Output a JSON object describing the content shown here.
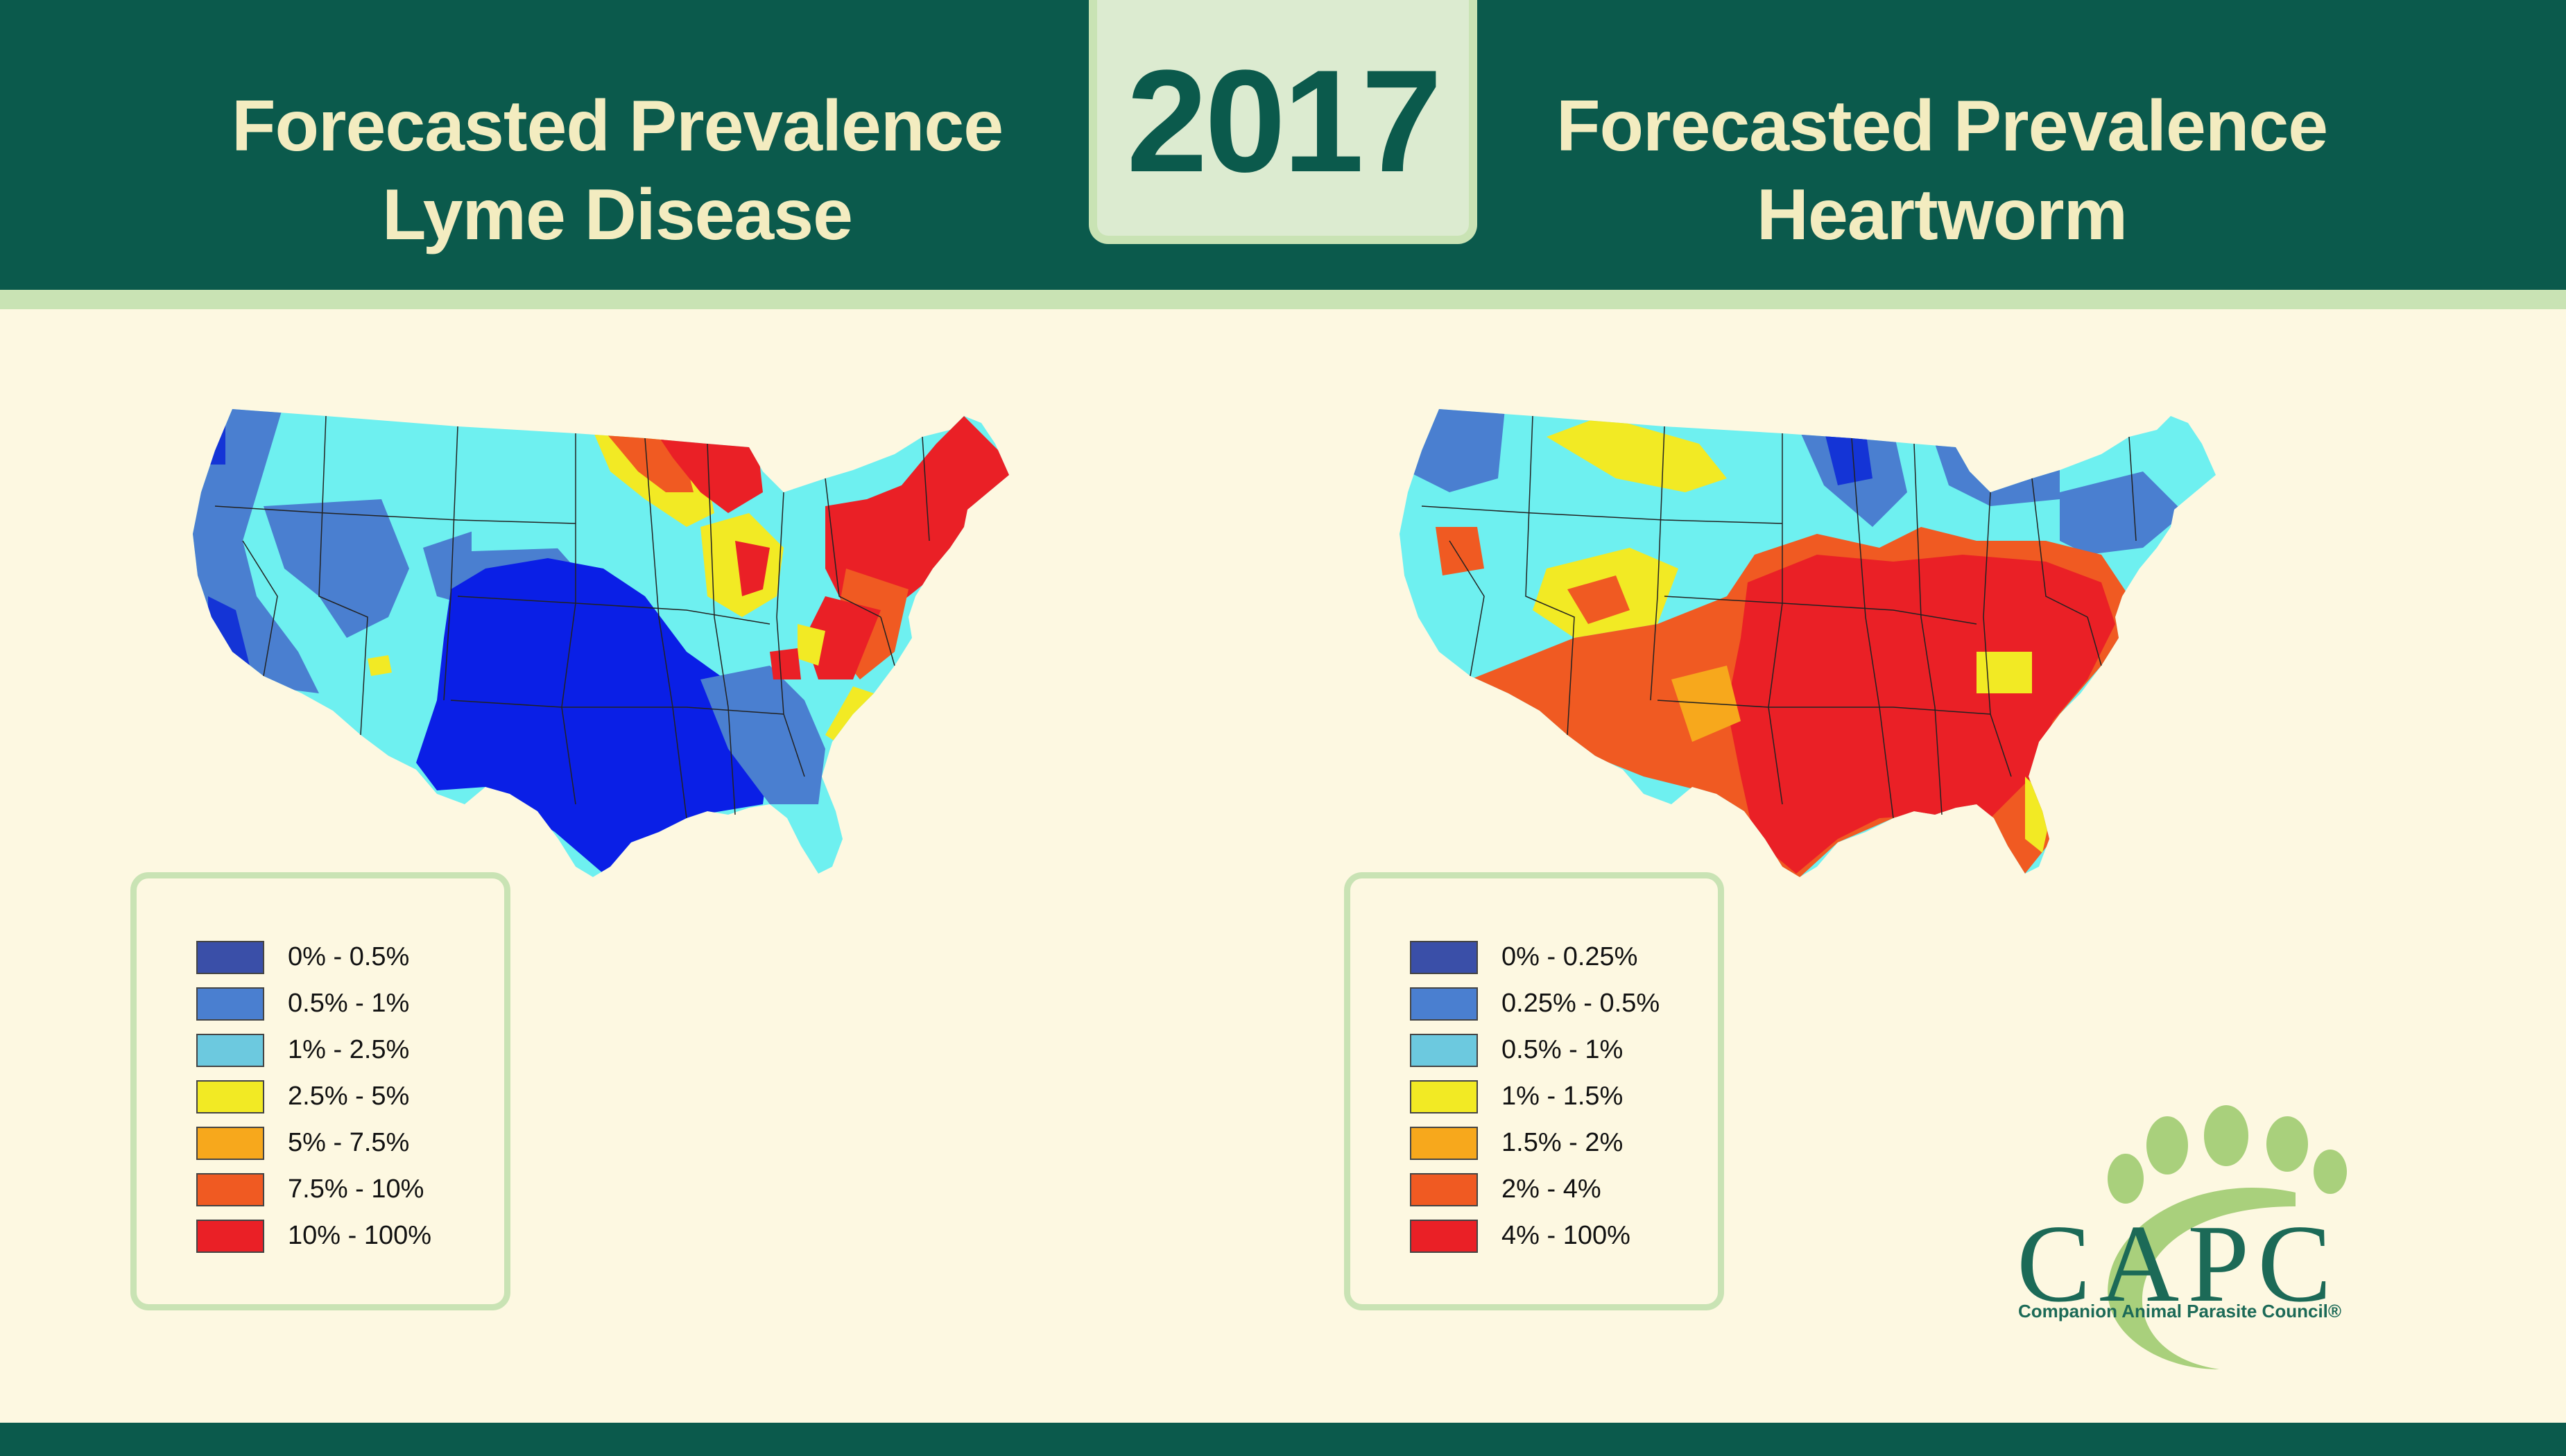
{
  "header": {
    "left_title": [
      "Forecasted Prevalence",
      "Lyme Disease"
    ],
    "year": "2017",
    "right_title": [
      "Forecasted Prevalence",
      "Heartworm"
    ]
  },
  "colors": {
    "header_bg": "#0b5a4c",
    "accent_green": "#c9e3b4",
    "page_bg": "#fdf8e1",
    "title_text": "#f3ecc0"
  },
  "lyme": {
    "legend": [
      {
        "label": "0% - 0.5%",
        "color": "#3a4fa8"
      },
      {
        "label": "0.5% - 1%",
        "color": "#4a7fd0"
      },
      {
        "label": "1% - 2.5%",
        "color": "#6cc9df"
      },
      {
        "label": "2.5% - 5%",
        "color": "#f2ea24"
      },
      {
        "label": "5% - 7.5%",
        "color": "#f7a81c"
      },
      {
        "label": "7.5% - 10%",
        "color": "#f05a22"
      },
      {
        "label": "10% - 100%",
        "color": "#ea2026"
      }
    ]
  },
  "heartworm": {
    "legend": [
      {
        "label": "0% - 0.25%",
        "color": "#3a4fa8"
      },
      {
        "label": "0.25% - 0.5%",
        "color": "#4a7fd0"
      },
      {
        "label": "0.5% - 1%",
        "color": "#6cc9df"
      },
      {
        "label": "1% - 1.5%",
        "color": "#f2ea24"
      },
      {
        "label": "1.5% - 2%",
        "color": "#f7a81c"
      },
      {
        "label": "2% - 4%",
        "color": "#f05a22"
      },
      {
        "label": "4% - 100%",
        "color": "#ea2026"
      }
    ]
  },
  "logo": {
    "word": "CAPC",
    "tagline": "Companion Animal Parasite Council®"
  }
}
